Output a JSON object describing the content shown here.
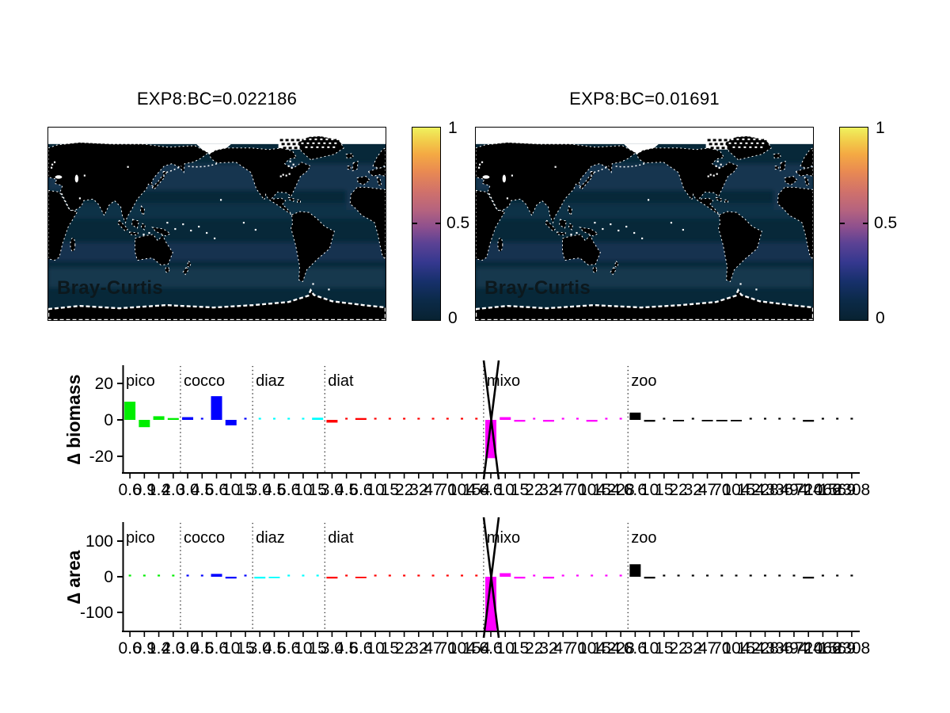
{
  "figure": {
    "background": "#ffffff",
    "maps": [
      {
        "title": "EXP8:BC=0.022186",
        "overlay_label": "Bray-Curtis",
        "colorbar": {
          "tick_labels": [
            "1",
            "0.5",
            "0"
          ],
          "min": 0,
          "max": 1
        }
      },
      {
        "title": "EXP8:BC=0.01691",
        "overlay_label": "Bray-Curtis",
        "colorbar": {
          "tick_labels": [
            "1",
            "0.5",
            "0"
          ],
          "min": 0,
          "max": 1
        }
      }
    ],
    "map_colors": {
      "ocean": "#072839",
      "land": "#000000",
      "ice": "#ffffff",
      "coast_speckle": "#ffffff",
      "bands": [
        "#133450",
        "#0f3046",
        "#123350",
        "#15374d"
      ]
    },
    "colormap": {
      "name": "thermal",
      "stops": [
        "#082231 0%",
        "#0b2a48 10%",
        "#17306b 20%",
        "#35388f 30%",
        "#5c4294 40%",
        "#8c4f8e 48%",
        "#b5637f 57%",
        "#d1726a 67%",
        "#e98a52 77%",
        "#f4a943 86%",
        "#f2cc4a 93%",
        "#eff25e 100%"
      ]
    }
  },
  "chart_data": [
    {
      "type": "bar",
      "ylabel": "∆ biomass",
      "ytick_labels": [
        "20",
        "0",
        "-20"
      ],
      "ytick_values": [
        20,
        0,
        -20
      ],
      "ylim": [
        -30,
        30
      ],
      "grid": false,
      "clipped_bar": {
        "group_index": 4,
        "bar_index": 0
      },
      "groups": [
        {
          "name": "pico",
          "color": "#00ee00",
          "sizes": [
            "0.6",
            "0.9",
            "1.4",
            "2.0"
          ],
          "values": [
            10,
            -4,
            2,
            1
          ]
        },
        {
          "name": "cocco",
          "color": "#0000ff",
          "sizes": [
            "3.0",
            "4.5",
            "6.6",
            "10",
            "15"
          ],
          "values": [
            1.5,
            0.4,
            13,
            -3,
            0.4
          ]
        },
        {
          "name": "diaz",
          "color": "#00ffff",
          "sizes": [
            "3.0",
            "4.5",
            "6.6",
            "10",
            "15"
          ],
          "values": [
            0.4,
            0.4,
            0.4,
            0.4,
            1.2
          ]
        },
        {
          "name": "diat",
          "color": "#ff0000",
          "sizes": [
            "3.0",
            "4.5",
            "6.6",
            "10",
            "15",
            "22",
            "32",
            "47",
            "70",
            "104",
            "154"
          ],
          "values": [
            -1.5,
            0.4,
            1,
            0.4,
            0.4,
            0.4,
            0.4,
            0.4,
            0.4,
            0.4,
            0.4
          ]
        },
        {
          "name": "mixo",
          "color": "#ff00ff",
          "sizes": [
            "6.6",
            "10",
            "15",
            "22",
            "32",
            "47",
            "70",
            "104",
            "154",
            "228"
          ],
          "values": [
            -21,
            1.5,
            -1,
            0.4,
            -1,
            0.4,
            0.4,
            -1,
            0.4,
            0.4
          ]
        },
        {
          "name": "zoo",
          "color": "#000000",
          "sizes": [
            "6.6",
            "10",
            "15",
            "22",
            "32",
            "47",
            "70",
            "104",
            "154",
            "228",
            "336",
            "494",
            "724",
            "1066",
            "1569",
            "2308"
          ],
          "values": [
            4,
            -1,
            0.3,
            -0.8,
            0.3,
            -0.8,
            -0.8,
            -0.8,
            0.3,
            0.3,
            0.3,
            0.3,
            -1,
            0.3,
            0.3,
            0.3
          ]
        }
      ]
    },
    {
      "type": "bar",
      "ylabel": "∆ area",
      "ytick_labels": [
        "100",
        "0",
        "-100"
      ],
      "ytick_values": [
        100,
        0,
        -100
      ],
      "ylim": [
        -160,
        150
      ],
      "grid": false,
      "clipped_bar": {
        "group_index": 4,
        "bar_index": 0
      },
      "groups": [
        {
          "name": "pico",
          "color": "#00ee00",
          "sizes": [
            "0.6",
            "0.9",
            "1.4",
            "2.0"
          ],
          "values": [
            0.5,
            0.5,
            0.5,
            0.5
          ]
        },
        {
          "name": "cocco",
          "color": "#0000ff",
          "sizes": [
            "3.0",
            "4.5",
            "6.6",
            "10",
            "15"
          ],
          "values": [
            1,
            1,
            8,
            -5,
            1
          ]
        },
        {
          "name": "diaz",
          "color": "#00ffff",
          "sizes": [
            "3.0",
            "4.5",
            "6.6",
            "10",
            "15"
          ],
          "values": [
            -5,
            -4,
            1,
            1,
            1
          ]
        },
        {
          "name": "diat",
          "color": "#ff0000",
          "sizes": [
            "3.0",
            "4.5",
            "6.6",
            "10",
            "15",
            "22",
            "32",
            "47",
            "70",
            "104",
            "154"
          ],
          "values": [
            -5,
            1,
            -4,
            1,
            1,
            1,
            1,
            1,
            1,
            1,
            1
          ]
        },
        {
          "name": "mixo",
          "color": "#ff00ff",
          "sizes": [
            "6.6",
            "10",
            "15",
            "22",
            "32",
            "47",
            "70",
            "104",
            "154",
            "228"
          ],
          "values": [
            -200,
            10,
            -5,
            1,
            -5,
            1,
            1,
            1,
            1,
            1
          ]
        },
        {
          "name": "zoo",
          "color": "#000000",
          "sizes": [
            "6.6",
            "10",
            "15",
            "22",
            "32",
            "47",
            "70",
            "104",
            "154",
            "228",
            "336",
            "494",
            "724",
            "1066",
            "1569",
            "2308"
          ],
          "values": [
            35,
            -5,
            1,
            1,
            1,
            1,
            1,
            1,
            1,
            1,
            1,
            1,
            -5,
            1,
            1,
            1
          ]
        }
      ]
    }
  ]
}
